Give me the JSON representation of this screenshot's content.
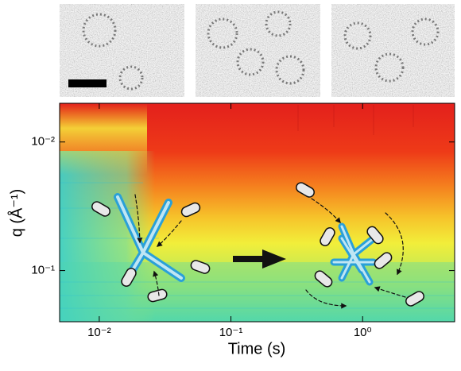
{
  "chart_data": {
    "type": "heatmap",
    "xlabel": "Time (s)",
    "ylabel": "q (Å⁻¹)",
    "xscale": "log",
    "yscale": "log",
    "y_inverted": true,
    "xlim": [
      0.005,
      5
    ],
    "ylim": [
      0.005,
      0.25
    ],
    "xticks": [
      {
        "value": 0.01,
        "label": "10⁻²"
      },
      {
        "value": 0.1,
        "label": "10⁻¹"
      },
      {
        "value": 1,
        "label": "10⁰"
      }
    ],
    "yticks": [
      {
        "value": 0.01,
        "label": "10⁻²"
      },
      {
        "value": 0.1,
        "label": "10⁻¹"
      }
    ]
  }
}
